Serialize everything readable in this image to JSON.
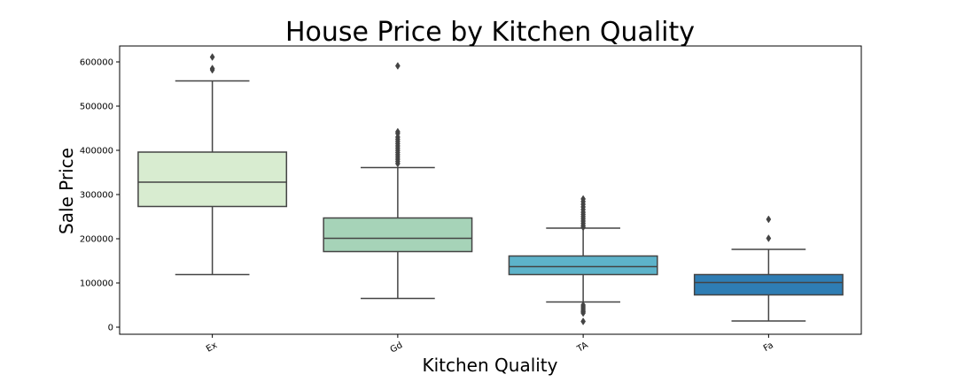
{
  "chart_data": {
    "type": "box",
    "title": "House Price by Kitchen Quality",
    "xlabel": "Kitchen Quality",
    "ylabel": "Sale Price",
    "ylim": [
      -16000,
      636000
    ],
    "yticks": [
      0,
      100000,
      200000,
      300000,
      400000,
      500000,
      600000
    ],
    "ytick_labels": [
      "0",
      "100000",
      "200000",
      "300000",
      "400000",
      "500000",
      "600000"
    ],
    "grid": false,
    "categories": [
      "Ex",
      "Gd",
      "TA",
      "Fa"
    ],
    "boxes": [
      {
        "category": "Ex",
        "whisker_low": 119000,
        "q1": 273000,
        "median": 328000,
        "q3": 396000,
        "whisker_high": 557000,
        "outliers": [
          611000,
          585000,
          582000
        ],
        "color": "#d8ecd0"
      },
      {
        "category": "Gd",
        "whisker_low": 65000,
        "q1": 171000,
        "median": 201000,
        "q3": 247000,
        "whisker_high": 361000,
        "outliers": [
          591000,
          442000,
          438000,
          430000,
          425000,
          420000,
          415000,
          410000,
          405000,
          400000,
          395000,
          390000,
          385000,
          380000,
          375000,
          370000
        ],
        "color": "#a6d3b8"
      },
      {
        "category": "TA",
        "whisker_low": 57000,
        "q1": 119000,
        "median": 137000,
        "q3": 161000,
        "whisker_high": 224000,
        "outliers": [
          290000,
          284000,
          278000,
          272000,
          266000,
          260000,
          255000,
          250000,
          245000,
          240000,
          235000,
          230000,
          226000,
          50000,
          46000,
          42000,
          38000,
          35000,
          32000,
          13000
        ],
        "color": "#5db3ca"
      },
      {
        "category": "Fa",
        "whisker_low": 14000,
        "q1": 73000,
        "median": 101000,
        "q3": 119000,
        "whisker_high": 176000,
        "outliers": [
          244000,
          201000
        ],
        "color": "#2e7db4"
      }
    ]
  }
}
